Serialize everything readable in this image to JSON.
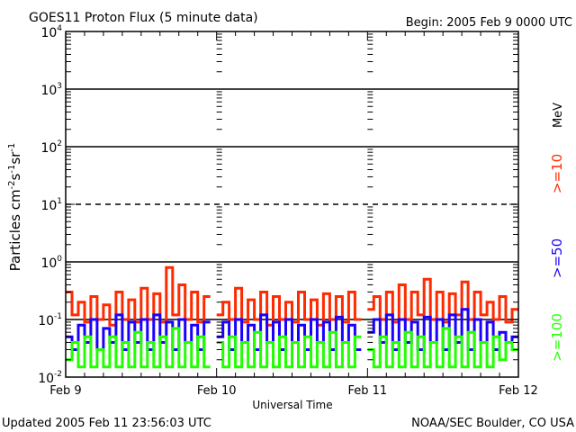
{
  "chart_data": {
    "type": "line",
    "title": "GOES11 Proton Flux (5 minute data)",
    "begin_label": "Begin: 2005 Feb 9 0000 UTC",
    "xlabel": "Universal Time",
    "ylabel": "Particles cm⁻²s⁻¹sr⁻¹",
    "ylabel_parts": {
      "base": "Particles cm",
      "e1": "-2",
      "s": "s",
      "e2": "-1",
      "sr": "sr",
      "e3": "-1"
    },
    "units_label": "MeV",
    "y_scale": "log",
    "ylim": [
      0.01,
      10000
    ],
    "y_ticks": [
      {
        "base": "10",
        "exp": "-2",
        "value": 0.01
      },
      {
        "base": "10",
        "exp": "-1",
        "value": 0.1
      },
      {
        "base": "10",
        "exp": "0",
        "value": 1
      },
      {
        "base": "10",
        "exp": "1",
        "value": 10
      },
      {
        "base": "10",
        "exp": "2",
        "value": 100
      },
      {
        "base": "10",
        "exp": "3",
        "value": 1000
      },
      {
        "base": "10",
        "exp": "4",
        "value": 10000
      }
    ],
    "x_unit": "hours since Begin",
    "xlim": [
      0,
      72
    ],
    "x_ticks": [
      {
        "label": "Feb 9",
        "value": 0
      },
      {
        "label": "Feb 10",
        "value": 24
      },
      {
        "label": "Feb 11",
        "value": 48
      },
      {
        "label": "Feb 12",
        "value": 72
      }
    ],
    "reference_lines": [
      {
        "value": 1000,
        "style": "solid"
      },
      {
        "value": 100,
        "style": "solid"
      },
      {
        "value": 10,
        "style": "dashed"
      },
      {
        "value": 1,
        "style": "solid"
      },
      {
        "value": 0.1,
        "style": "solid"
      }
    ],
    "series": [
      {
        "name": ">=10",
        "color": "#ff2a00",
        "values": [
          0.3,
          0.12,
          0.2,
          0.09,
          0.25,
          0.1,
          0.18,
          0.08,
          0.3,
          0.1,
          0.22,
          0.09,
          0.35,
          0.1,
          0.28,
          0.09,
          0.8,
          0.12,
          0.4,
          0.1,
          0.3,
          0.09,
          0.25,
          null,
          0.12,
          0.2,
          0.1,
          0.35,
          0.09,
          0.22,
          0.1,
          0.3,
          0.08,
          0.25,
          0.1,
          0.2,
          0.09,
          0.3,
          0.1,
          0.22,
          0.08,
          0.28,
          0.1,
          0.25,
          0.09,
          0.3,
          0.1,
          null,
          0.15,
          0.25,
          0.1,
          0.3,
          0.09,
          0.4,
          0.1,
          0.3,
          0.12,
          0.5,
          0.1,
          0.3,
          0.09,
          0.28,
          0.12,
          0.45,
          0.1,
          0.3,
          0.12,
          0.2,
          0.1,
          0.25,
          0.09,
          0.15
        ]
      },
      {
        "name": ">=50",
        "color": "#1a00ff",
        "values": [
          0.05,
          0.03,
          0.08,
          0.04,
          0.1,
          0.03,
          0.07,
          0.04,
          0.12,
          0.03,
          0.09,
          0.04,
          0.1,
          0.03,
          0.12,
          0.04,
          0.09,
          0.03,
          0.1,
          0.04,
          0.08,
          0.03,
          0.09,
          null,
          0.05,
          0.09,
          0.03,
          0.1,
          0.04,
          0.08,
          0.03,
          0.12,
          0.04,
          0.09,
          0.03,
          0.1,
          0.04,
          0.08,
          0.03,
          0.1,
          0.04,
          0.09,
          0.03,
          0.11,
          0.04,
          0.08,
          0.03,
          null,
          0.06,
          0.1,
          0.04,
          0.12,
          0.03,
          0.1,
          0.04,
          0.09,
          0.03,
          0.11,
          0.04,
          0.1,
          0.03,
          0.12,
          0.04,
          0.15,
          0.03,
          0.1,
          0.04,
          0.09,
          0.03,
          0.06,
          0.04,
          0.05
        ]
      },
      {
        "name": ">=100",
        "color": "#22ff00",
        "values": [
          0.02,
          0.04,
          0.015,
          0.05,
          0.015,
          0.03,
          0.015,
          0.05,
          0.015,
          0.04,
          0.015,
          0.06,
          0.015,
          0.04,
          0.015,
          0.05,
          0.015,
          0.07,
          0.015,
          0.04,
          0.015,
          0.05,
          0.015,
          null,
          0.04,
          0.015,
          0.05,
          0.015,
          0.04,
          0.015,
          0.06,
          0.015,
          0.04,
          0.015,
          0.05,
          0.015,
          0.04,
          0.015,
          0.05,
          0.015,
          0.04,
          0.015,
          0.06,
          0.015,
          0.04,
          0.015,
          0.05,
          null,
          0.03,
          0.015,
          0.05,
          0.015,
          0.04,
          0.015,
          0.06,
          0.015,
          0.05,
          0.015,
          0.04,
          0.015,
          0.07,
          0.015,
          0.05,
          0.015,
          0.06,
          0.015,
          0.04,
          0.015,
          0.05,
          0.02,
          0.04,
          0.03
        ]
      }
    ],
    "grid": false,
    "legend_placement": "right"
  },
  "footer": {
    "updated": "Updated 2005 Feb 11 23:56:03 UTC",
    "credit": "NOAA/SEC Boulder, CO USA"
  }
}
